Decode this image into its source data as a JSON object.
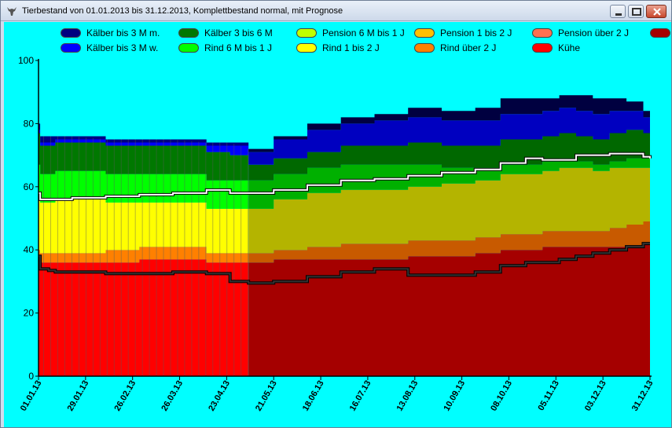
{
  "window": {
    "title": "Tierbestand von 01.01.2013 bis 31.12.2013, Komplettbestand normal, mit Prognose",
    "icon": "cow-skull-icon",
    "controls": [
      "minimize-icon",
      "maximize-icon",
      "close-icon"
    ]
  },
  "chart_data": {
    "type": "area",
    "stacked": true,
    "ylim": [
      0,
      100
    ],
    "y_ticks": [
      "0",
      "20",
      "40",
      "60",
      "80",
      "100"
    ],
    "x_tick_labels": [
      "01.01.13",
      "29.01.13",
      "26.02.13",
      "26.03.13",
      "23.04.13",
      "21.05.13",
      "18.06.13",
      "16.07.13",
      "13.08.13",
      "10.09.13",
      "08.10.13",
      "05.11.13",
      "03.12.13",
      "31.12.13"
    ],
    "x_day_ticks": [
      0,
      28,
      56,
      84,
      112,
      140,
      168,
      196,
      224,
      252,
      280,
      308,
      336,
      364
    ],
    "forecast_start_day": 125,
    "x": [
      0,
      1,
      6,
      10,
      20,
      40,
      60,
      80,
      100,
      114,
      125,
      140,
      160,
      180,
      200,
      220,
      240,
      260,
      275,
      290,
      300,
      310,
      320,
      330,
      340,
      350,
      360,
      364
    ],
    "series": [
      {
        "name": "Kühe",
        "color": "#ff0000",
        "forecast_color": "#a50000",
        "values": [
          37,
          36,
          36,
          36,
          36,
          36,
          37,
          37,
          36,
          36,
          36,
          37,
          37,
          37,
          37,
          38,
          38,
          39,
          40,
          40,
          41,
          41,
          41,
          41,
          41,
          41,
          42,
          42
        ]
      },
      {
        "name": "Rind über 2 J",
        "color": "#ff8000",
        "forecast_color": "#c85a00",
        "values": [
          3,
          3,
          3,
          3,
          3,
          4,
          4,
          4,
          3,
          3,
          3,
          3,
          4,
          5,
          5,
          5,
          5,
          5,
          5,
          5,
          5,
          5,
          5,
          5,
          6,
          7,
          7,
          7
        ]
      },
      {
        "name": "Pension über 2 J",
        "color": "#ff7050",
        "forecast_color": "#c06840",
        "values": [
          0,
          0,
          0,
          0,
          0,
          0,
          0,
          0,
          0,
          0,
          0,
          0,
          0,
          0,
          0,
          0,
          0,
          0,
          0,
          0,
          0,
          0,
          0,
          0,
          0,
          0,
          0,
          0
        ]
      },
      {
        "name": "Rind 1 bis 2 J",
        "color": "#ffff00",
        "forecast_color": "#b4b400",
        "values": [
          17,
          16,
          16,
          17,
          17,
          15,
          14,
          14,
          14,
          14,
          14,
          16,
          17,
          17,
          17,
          17,
          18,
          18,
          19,
          19,
          19,
          20,
          20,
          19,
          19,
          18,
          17,
          17
        ]
      },
      {
        "name": "Pension 1 bis 2 J",
        "color": "#ffc000",
        "forecast_color": "#b09000",
        "values": [
          0,
          0,
          0,
          0,
          0,
          0,
          0,
          0,
          0,
          0,
          0,
          0,
          0,
          0,
          0,
          0,
          0,
          0,
          0,
          0,
          0,
          0,
          0,
          0,
          0,
          0,
          0,
          0
        ]
      },
      {
        "name": "Rind 6 M bis 1 J",
        "color": "#00ff00",
        "forecast_color": "#00b000",
        "values": [
          10,
          9,
          9,
          9,
          9,
          9,
          9,
          9,
          9,
          9,
          9,
          8,
          8,
          8,
          8,
          7,
          5,
          4,
          3,
          3,
          3,
          3,
          2,
          2,
          2,
          3,
          3,
          3
        ]
      },
      {
        "name": "Pension 6 M bis 1 J",
        "color": "#c0ff00",
        "forecast_color": "#90c000",
        "values": [
          0,
          0,
          0,
          0,
          0,
          0,
          0,
          0,
          0,
          0,
          0,
          0,
          0,
          0,
          0,
          0,
          0,
          0,
          0,
          0,
          0,
          0,
          0,
          0,
          0,
          0,
          0,
          0
        ]
      },
      {
        "name": "Kälber 3 bis 6 M",
        "color": "#007800",
        "forecast_color": "#006800",
        "values": [
          10,
          9,
          9,
          9,
          9,
          9,
          9,
          9,
          9,
          8,
          5,
          5,
          5,
          6,
          6,
          7,
          7,
          7,
          8,
          8,
          8,
          8,
          8,
          8,
          9,
          9,
          8,
          8
        ]
      },
      {
        "name": "Kälber bis 3 M w.",
        "color": "#0000ff",
        "forecast_color": "#0000c0",
        "values": [
          1,
          1,
          1,
          1,
          1,
          1,
          1,
          1,
          2,
          3,
          4,
          6,
          7,
          7,
          8,
          8,
          8,
          8,
          8,
          8,
          8,
          8,
          8,
          8,
          7,
          6,
          5,
          5
        ]
      },
      {
        "name": "Kälber bis 3 M m.",
        "color": "#000080",
        "forecast_color": "#000040",
        "values": [
          2,
          2,
          2,
          1,
          1,
          1,
          1,
          1,
          1,
          1,
          1,
          1,
          2,
          2,
          2,
          3,
          3,
          4,
          5,
          5,
          4,
          4,
          5,
          5,
          4,
          3,
          2,
          2
        ]
      }
    ],
    "lines": [
      {
        "color": "#ffffff",
        "values": [
          58,
          56,
          56,
          56,
          56.5,
          57,
          57.5,
          58,
          59,
          58,
          58,
          59,
          60.5,
          62,
          62.5,
          63.5,
          64.5,
          65.5,
          67.5,
          69,
          68.5,
          68.5,
          70,
          70,
          70.5,
          70.5,
          69.5,
          69
        ]
      },
      {
        "color": "#333333",
        "values": [
          38,
          34,
          33.5,
          33,
          33,
          32.5,
          32.5,
          33,
          32.5,
          30,
          29.5,
          30,
          31.5,
          33,
          34,
          32,
          32,
          33,
          35,
          36,
          36,
          37,
          38,
          39,
          40,
          41,
          42,
          42
        ]
      }
    ]
  },
  "legend_items": [
    {
      "label": "Kälber bis 3 M m.",
      "color": "#000080"
    },
    {
      "label": "Kälber 3 bis 6 M",
      "color": "#007800"
    },
    {
      "label": "Pension 6 M bis 1 J",
      "color": "#c0ff00"
    },
    {
      "label": "Pension 1 bis 2 J",
      "color": "#ffc000"
    },
    {
      "label": "Pension über 2 J",
      "color": "#ff7050"
    },
    {
      "label": "",
      "color": "#a50000"
    },
    {
      "label": "Kälber bis 3 M w.",
      "color": "#0000ff"
    },
    {
      "label": "Rind 6 M bis 1 J",
      "color": "#00ff00"
    },
    {
      "label": "Rind 1 bis 2 J",
      "color": "#ffff00"
    },
    {
      "label": "Rind über 2 J",
      "color": "#ff8000"
    },
    {
      "label": "Kühe",
      "color": "#ff0000"
    }
  ]
}
